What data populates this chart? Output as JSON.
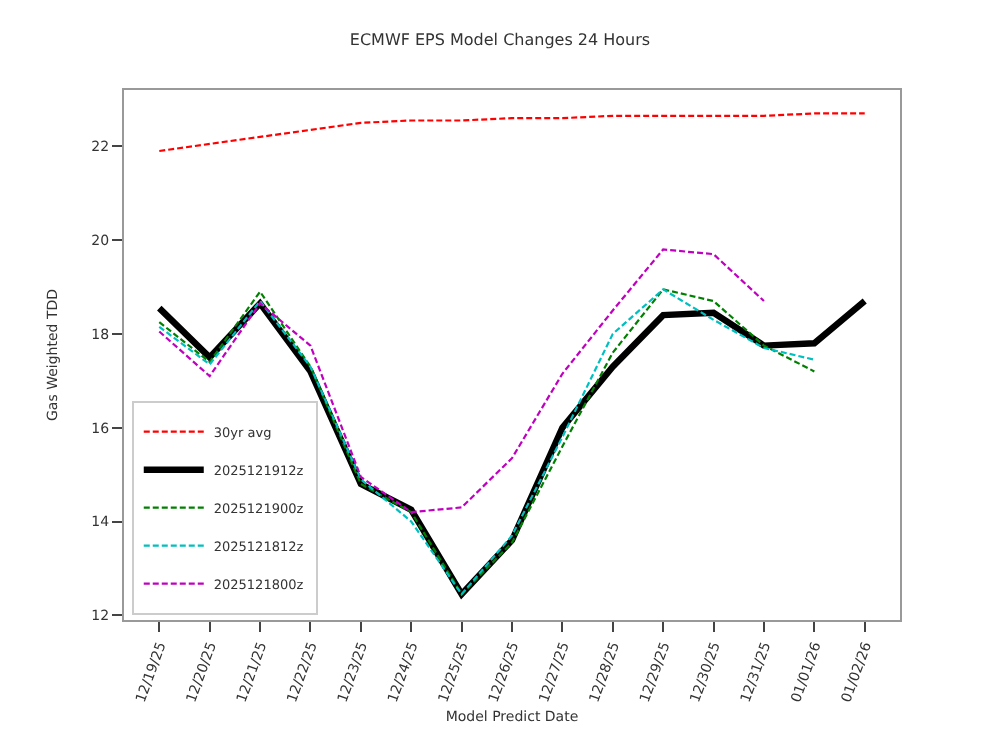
{
  "chart_data": {
    "type": "line",
    "title": "ECMWF EPS Model Changes 24 Hours",
    "xlabel": "Model Predict Date",
    "ylabel": "Gas Weighted TDD",
    "categories": [
      "12/19/25",
      "12/20/25",
      "12/21/25",
      "12/22/25",
      "12/23/25",
      "12/24/25",
      "12/25/25",
      "12/26/25",
      "12/27/25",
      "12/28/25",
      "12/29/25",
      "12/30/25",
      "12/31/25",
      "01/01/26",
      "01/02/26"
    ],
    "series": [
      {
        "name": "30yr avg",
        "color": "#ff0000",
        "line_style": "dashed",
        "values": [
          21.9,
          22.05,
          22.2,
          22.35,
          22.5,
          22.55,
          22.55,
          22.6,
          22.6,
          22.65,
          22.65,
          22.65,
          22.65,
          22.7,
          22.7
        ]
      },
      {
        "name": "2025121912z",
        "color": "#000000",
        "line_style": "solid",
        "values": [
          18.55,
          17.5,
          18.65,
          17.2,
          14.8,
          14.25,
          12.45,
          13.6,
          16.0,
          17.3,
          18.4,
          18.45,
          17.75,
          17.8,
          18.7
        ]
      },
      {
        "name": "2025121900z",
        "color": "#008000",
        "line_style": "dashed",
        "values": [
          18.25,
          17.4,
          18.9,
          17.3,
          14.8,
          14.2,
          12.45,
          13.55,
          15.6,
          17.6,
          18.95,
          18.7,
          17.75,
          17.2,
          null
        ]
      },
      {
        "name": "2025121812z",
        "color": "#00bfbf",
        "line_style": "dashed",
        "values": [
          18.15,
          17.35,
          18.7,
          17.3,
          14.9,
          14.0,
          12.45,
          13.7,
          15.8,
          18.0,
          18.95,
          18.3,
          17.7,
          17.45,
          null
        ]
      },
      {
        "name": "2025121800z",
        "color": "#bf00bf",
        "line_style": "dashed",
        "values": [
          18.05,
          17.1,
          18.65,
          17.75,
          14.95,
          14.2,
          14.3,
          15.35,
          17.15,
          18.5,
          19.8,
          19.7,
          18.7,
          null,
          null
        ]
      }
    ],
    "ylim": [
      11.9,
      23.2
    ],
    "yticks": [
      12,
      14,
      16,
      18,
      20,
      22
    ],
    "legend": "bottom left",
    "marker": "none"
  }
}
